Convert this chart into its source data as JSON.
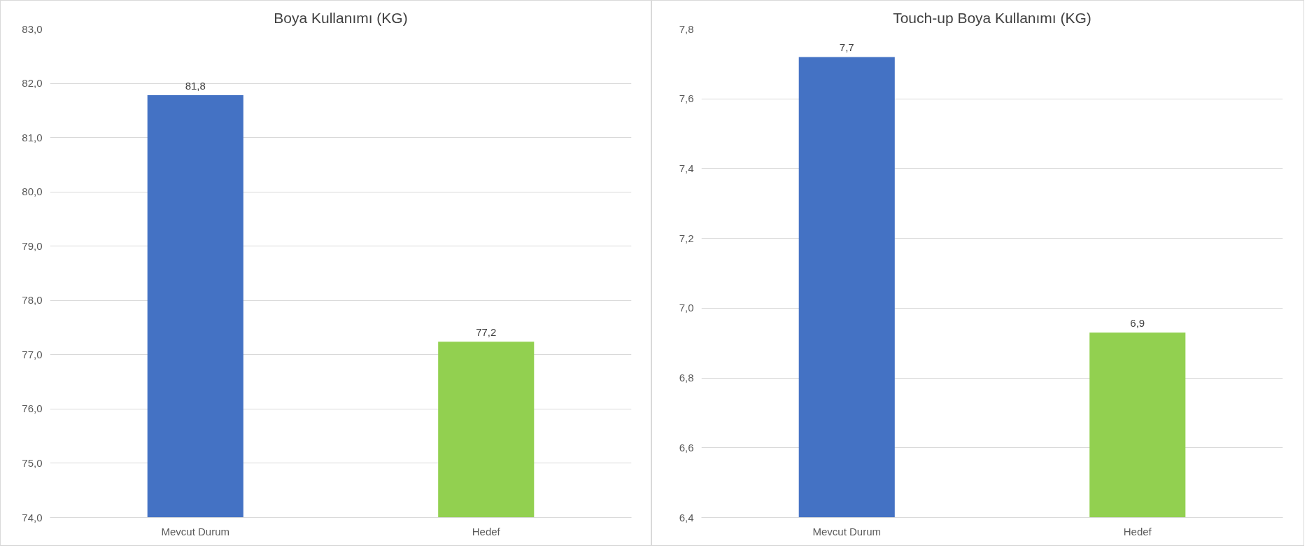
{
  "chart_data": [
    {
      "type": "bar",
      "title": "Boya Kullanımı (KG)",
      "categories": [
        "Mevcut Durum",
        "Hedef"
      ],
      "values": [
        81.78,
        77.24
      ],
      "colors": [
        "#4472c4",
        "#92d050"
      ],
      "value_labels": [
        "81,8",
        "77,2"
      ],
      "ylim": [
        74,
        83
      ],
      "yticks": [
        {
          "value": 74,
          "label": "74,0"
        },
        {
          "value": 75,
          "label": "75,0"
        },
        {
          "value": 76,
          "label": "76,0"
        },
        {
          "value": 77,
          "label": "77,0"
        },
        {
          "value": 78,
          "label": "78,0"
        },
        {
          "value": 79,
          "label": "79,0"
        },
        {
          "value": 80,
          "label": "80,0"
        },
        {
          "value": 81,
          "label": "81,0"
        },
        {
          "value": 82,
          "label": "82,0"
        },
        {
          "value": 83,
          "label": "83,0"
        }
      ],
      "grid": "y"
    },
    {
      "type": "bar",
      "title": "Touch-up Boya Kullanımı (KG)",
      "categories": [
        "Mevcut Durum",
        "Hedef"
      ],
      "values": [
        7.72,
        6.93
      ],
      "colors": [
        "#4472c4",
        "#92d050"
      ],
      "value_labels": [
        "7,7",
        "6,9"
      ],
      "ylim": [
        6.4,
        7.8
      ],
      "yticks": [
        {
          "value": 6.4,
          "label": "6,4"
        },
        {
          "value": 6.6,
          "label": "6,6"
        },
        {
          "value": 6.8,
          "label": "6,8"
        },
        {
          "value": 7.0,
          "label": "7,0"
        },
        {
          "value": 7.2,
          "label": "7,2"
        },
        {
          "value": 7.4,
          "label": "7,4"
        },
        {
          "value": 7.6,
          "label": "7,6"
        },
        {
          "value": 7.8,
          "label": "7,8"
        }
      ],
      "grid": "y"
    }
  ]
}
